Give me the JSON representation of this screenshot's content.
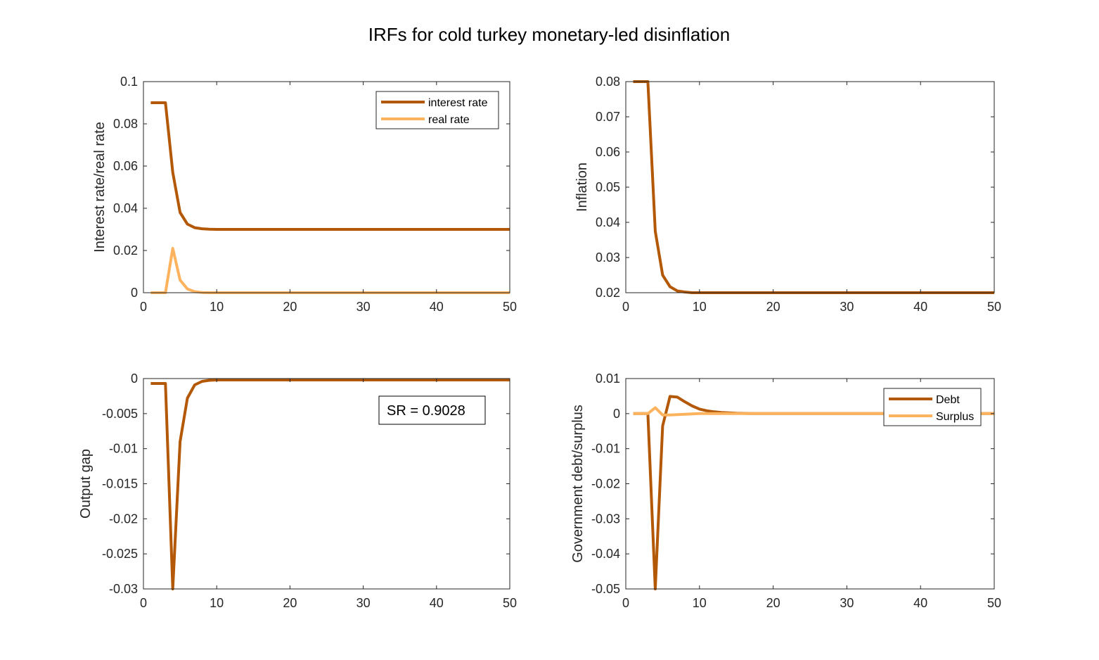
{
  "title": "IRFs for cold turkey monetary-led disinflation",
  "colors": {
    "dark": "#B35806",
    "light": "#FDB35E",
    "axis": "#262626"
  },
  "chart_data": [
    {
      "type": "line",
      "xlabel": "",
      "ylabel": "Interest rate/real rate",
      "xlim": [
        0,
        50
      ],
      "ylim": [
        0,
        0.1
      ],
      "xticks": [
        0,
        10,
        20,
        30,
        40,
        50
      ],
      "xtick_labels": [
        "0",
        "10",
        "20",
        "30",
        "40",
        "50"
      ],
      "yticks": [
        0,
        0.02,
        0.04,
        0.06,
        0.08,
        0.1
      ],
      "ytick_labels": [
        "0",
        "0.02",
        "0.04",
        "0.06",
        "0.08",
        "0.1"
      ],
      "legend": "top-right",
      "grid": false,
      "series": [
        {
          "name": "interest rate",
          "color": "dark",
          "x": [
            1,
            2,
            3,
            4,
            5,
            6,
            7,
            8,
            9,
            10,
            12,
            15,
            20,
            30,
            40,
            50
          ],
          "y": [
            0.09,
            0.09,
            0.09,
            0.057,
            0.038,
            0.0325,
            0.0308,
            0.0303,
            0.0301,
            0.03,
            0.03,
            0.03,
            0.03,
            0.03,
            0.03,
            0.03
          ]
        },
        {
          "name": "real rate",
          "color": "light",
          "x": [
            1,
            2,
            3,
            4,
            5,
            6,
            7,
            8,
            9,
            10,
            15,
            20,
            30,
            40,
            50
          ],
          "y": [
            0,
            0,
            0,
            0.021,
            0.006,
            0.0018,
            0.0005,
            0.0001,
            0,
            0,
            0,
            0,
            0,
            0,
            0
          ]
        }
      ]
    },
    {
      "type": "line",
      "xlabel": "",
      "ylabel": "Inflation",
      "xlim": [
        0,
        50
      ],
      "ylim": [
        0.02,
        0.08
      ],
      "xticks": [
        0,
        10,
        20,
        30,
        40,
        50
      ],
      "xtick_labels": [
        "0",
        "10",
        "20",
        "30",
        "40",
        "50"
      ],
      "yticks": [
        0.02,
        0.03,
        0.04,
        0.05,
        0.06,
        0.07,
        0.08
      ],
      "ytick_labels": [
        "0.02",
        "0.03",
        "0.04",
        "0.05",
        "0.06",
        "0.07",
        "0.08"
      ],
      "grid": false,
      "series": [
        {
          "color": "dark",
          "x": [
            1,
            2,
            3,
            4,
            5,
            6,
            7,
            8,
            9,
            10,
            12,
            15,
            20,
            30,
            40,
            50
          ],
          "y": [
            0.08,
            0.08,
            0.08,
            0.0375,
            0.025,
            0.0217,
            0.0205,
            0.0202,
            0.02,
            0.02,
            0.02,
            0.02,
            0.02,
            0.02,
            0.02,
            0.02
          ]
        }
      ]
    },
    {
      "type": "line",
      "xlabel": "",
      "ylabel": "Output gap",
      "xlim": [
        0,
        50
      ],
      "ylim": [
        -0.03,
        0
      ],
      "xticks": [
        0,
        10,
        20,
        30,
        40,
        50
      ],
      "xtick_labels": [
        "0",
        "10",
        "20",
        "30",
        "40",
        "50"
      ],
      "yticks": [
        -0.03,
        -0.025,
        -0.02,
        -0.015,
        -0.01,
        -0.005,
        0
      ],
      "ytick_labels": [
        "-0.03",
        "-0.025",
        "-0.02",
        "-0.015",
        "-0.01",
        "-0.005",
        "0"
      ],
      "annotation": "SR = 0.9028",
      "grid": false,
      "series": [
        {
          "color": "dark",
          "x": [
            1,
            2,
            3,
            4,
            5,
            6,
            7,
            8,
            9,
            10,
            12,
            15,
            20,
            30,
            40,
            50
          ],
          "y": [
            -0.0007,
            -0.0007,
            -0.0007,
            -0.03,
            -0.009,
            -0.0028,
            -0.0009,
            -0.0004,
            -0.00025,
            -0.0002,
            -0.0002,
            -0.0002,
            -0.0002,
            -0.0002,
            -0.0002,
            -0.0002
          ]
        }
      ]
    },
    {
      "type": "line",
      "xlabel": "",
      "ylabel": "Government debt/surplus",
      "xlim": [
        0,
        50
      ],
      "ylim": [
        -0.05,
        0.01
      ],
      "xticks": [
        0,
        10,
        20,
        30,
        40,
        50
      ],
      "xtick_labels": [
        "0",
        "10",
        "20",
        "30",
        "40",
        "50"
      ],
      "yticks": [
        -0.05,
        -0.04,
        -0.03,
        -0.02,
        -0.01,
        0,
        0.01
      ],
      "ytick_labels": [
        "-0.05",
        "-0.04",
        "-0.03",
        "-0.02",
        "-0.01",
        "0",
        "0.01"
      ],
      "legend": "top-right",
      "grid": false,
      "series": [
        {
          "name": "Debt",
          "color": "dark",
          "x": [
            1,
            2,
            3,
            4,
            5,
            6,
            7,
            8,
            9,
            10,
            11,
            12,
            13,
            15,
            17,
            20,
            30,
            40,
            50
          ],
          "y": [
            0,
            0,
            0,
            -0.05,
            -0.0035,
            0.0049,
            0.0047,
            0.0034,
            0.0022,
            0.0013,
            0.0008,
            0.0005,
            0.0003,
            0.0001,
            0,
            0,
            0,
            0,
            0
          ]
        },
        {
          "name": "Surplus",
          "color": "light",
          "x": [
            1,
            2,
            3,
            4,
            5,
            6,
            7,
            8,
            9,
            10,
            12,
            15,
            20,
            30,
            40,
            50
          ],
          "y": [
            0,
            0,
            0,
            0.0017,
            -0.0004,
            -0.0004,
            -0.0003,
            -0.0002,
            -0.0001,
            0,
            0,
            0,
            0,
            0,
            0,
            0
          ]
        }
      ]
    }
  ]
}
